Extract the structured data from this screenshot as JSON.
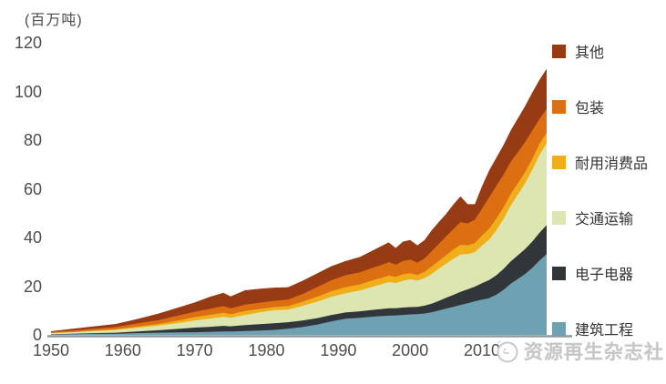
{
  "watermark": {
    "text": "资源再生杂志社"
  },
  "chart_data": {
    "type": "area",
    "stacked": true,
    "title": "",
    "xlabel": "",
    "ylabel": "(百万吨)",
    "xlim": [
      1950,
      2019
    ],
    "ylim": [
      0,
      120
    ],
    "x_ticks": [
      1950,
      1960,
      1970,
      1980,
      1990,
      2000,
      2010
    ],
    "y_ticks": [
      0,
      20,
      40,
      60,
      80,
      100,
      120
    ],
    "grid": false,
    "legend_position": "right",
    "legend_order_top_to_bottom": [
      "其他",
      "包装",
      "耐用消费品",
      "交通运输",
      "电子电器",
      "建筑工程"
    ],
    "x": [
      1950,
      1953,
      1956,
      1959,
      1962,
      1965,
      1968,
      1970,
      1972,
      1974,
      1975,
      1977,
      1979,
      1981,
      1983,
      1985,
      1987,
      1989,
      1991,
      1993,
      1995,
      1996,
      1997,
      1998,
      1999,
      2000,
      2001,
      2002,
      2003,
      2004,
      2005,
      2006,
      2007,
      2008,
      2009,
      2010,
      2011,
      2012,
      2013,
      2014,
      2015,
      2016,
      2017,
      2018,
      2019
    ],
    "series": [
      {
        "name": "建筑工程",
        "color": "#6ea2b2",
        "values": [
          0.2,
          0.3,
          0.4,
          0.5,
          0.7,
          0.9,
          1.0,
          1.1,
          1.2,
          1.4,
          1.4,
          1.6,
          1.8,
          2.0,
          2.5,
          3.2,
          4.2,
          5.5,
          6.6,
          7.0,
          7.5,
          7.7,
          7.9,
          8.0,
          8.2,
          8.4,
          8.5,
          8.8,
          9.3,
          10.0,
          10.8,
          11.5,
          12.3,
          13.0,
          13.8,
          14.5,
          15.1,
          16.5,
          18.5,
          21.0,
          23.0,
          25.0,
          27.5,
          30.5,
          33.2
        ]
      },
      {
        "name": "电子电器",
        "color": "#31363a",
        "values": [
          0.1,
          0.2,
          0.3,
          0.4,
          0.7,
          1.0,
          1.5,
          1.9,
          2.1,
          2.3,
          2.1,
          2.4,
          2.6,
          2.8,
          2.7,
          2.7,
          2.6,
          2.6,
          2.6,
          2.7,
          2.8,
          2.9,
          3.0,
          2.9,
          3.0,
          3.0,
          3.0,
          3.2,
          3.5,
          4.0,
          4.4,
          4.9,
          5.4,
          5.7,
          6.0,
          6.7,
          7.4,
          8.0,
          8.6,
          9.2,
          9.7,
          10.2,
          10.8,
          11.4,
          11.9
        ]
      },
      {
        "name": "交通运输",
        "color": "#dde6b0",
        "values": [
          0.4,
          0.6,
          0.9,
          1.1,
          1.5,
          1.9,
          2.5,
          2.9,
          3.3,
          3.7,
          3.5,
          4.2,
          4.8,
          5.3,
          5.2,
          6.0,
          6.8,
          7.5,
          7.9,
          8.5,
          9.7,
          10.2,
          10.8,
          10.4,
          11.0,
          11.4,
          10.8,
          11.3,
          12.3,
          13.2,
          14.0,
          14.8,
          15.3,
          14.5,
          14.2,
          15.5,
          16.6,
          18.5,
          20.5,
          23.0,
          25.0,
          27.0,
          29.5,
          32.0,
          33.6
        ]
      },
      {
        "name": "耐用消费品",
        "color": "#f0ae1b",
        "values": [
          0.1,
          0.15,
          0.2,
          0.3,
          0.5,
          0.7,
          1.1,
          1.4,
          1.6,
          1.7,
          1.5,
          1.6,
          1.4,
          1.3,
          1.4,
          1.7,
          2.0,
          2.3,
          2.5,
          2.5,
          2.6,
          2.6,
          2.7,
          2.5,
          2.7,
          2.6,
          2.3,
          2.6,
          3.0,
          3.2,
          3.5,
          3.8,
          4.0,
          3.6,
          3.7,
          4.1,
          4.5,
          4.8,
          4.8,
          4.7,
          4.6,
          4.6,
          4.5,
          4.5,
          4.4
        ]
      },
      {
        "name": "包装",
        "color": "#dd6f13",
        "values": [
          0.4,
          0.55,
          0.7,
          0.9,
          1.3,
          1.6,
          2.0,
          2.2,
          2.4,
          2.7,
          2.4,
          2.6,
          2.6,
          2.6,
          2.7,
          3.2,
          3.9,
          4.5,
          4.9,
          5.0,
          5.2,
          5.3,
          5.5,
          5.1,
          5.4,
          5.5,
          5.1,
          5.5,
          6.3,
          7.0,
          7.7,
          8.4,
          9.3,
          9.0,
          9.6,
          11.0,
          12.9,
          13.4,
          13.4,
          13.2,
          12.8,
          12.4,
          11.6,
          10.3,
          9.6
        ]
      },
      {
        "name": "其他",
        "color": "#963b14",
        "values": [
          0.3,
          0.7,
          1.0,
          1.3,
          1.8,
          2.7,
          3.4,
          3.8,
          4.9,
          5.5,
          4.9,
          5.9,
          5.7,
          5.4,
          5.1,
          5.4,
          5.7,
          5.8,
          5.8,
          6.3,
          7.2,
          7.8,
          8.1,
          6.8,
          8.0,
          8.1,
          7.1,
          7.6,
          8.6,
          9.0,
          9.3,
          10.1,
          10.6,
          7.9,
          6.4,
          9.2,
          11.1,
          11.6,
          12.2,
          12.9,
          13.9,
          14.8,
          15.6,
          16.1,
          16.6
        ]
      }
    ],
    "axis_line_color": "#8e999c"
  }
}
